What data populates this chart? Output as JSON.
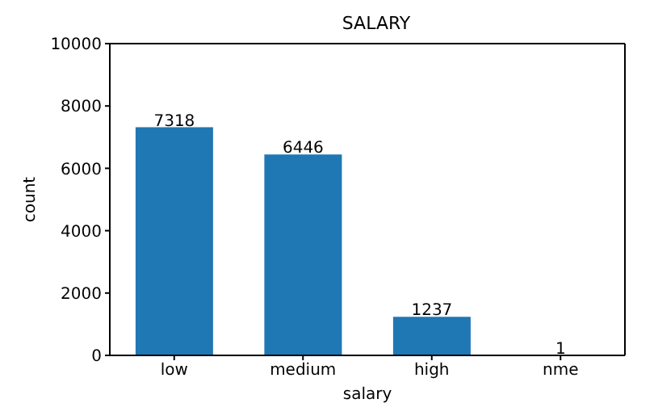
{
  "chart_data": {
    "type": "bar",
    "title": "SALARY",
    "xlabel": "salary",
    "ylabel": "count",
    "categories": [
      "low",
      "medium",
      "high",
      "nme"
    ],
    "values": [
      7318,
      6446,
      1237,
      1
    ],
    "color": "#1f77b4",
    "ylim": [
      0,
      10000
    ],
    "yticks": [
      0,
      2000,
      4000,
      6000,
      8000,
      10000
    ],
    "data_labels": true,
    "grid": false
  }
}
